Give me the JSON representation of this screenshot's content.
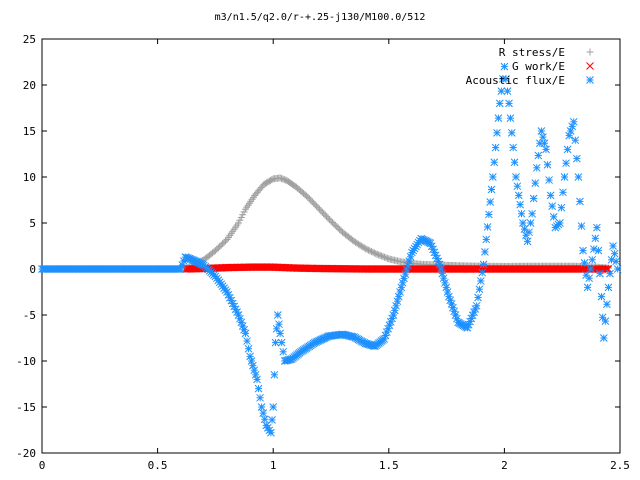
{
  "chart_data": {
    "type": "scatter",
    "title": "m3/n1.5/q2.0/r-+.25-j130/M100.0/512",
    "xlabel": "",
    "ylabel": "",
    "xlim": [
      0,
      2.5
    ],
    "ylim": [
      -20,
      25
    ],
    "x_ticks": [
      "0",
      "0.5",
      "1",
      "1.5",
      "2",
      "2.5"
    ],
    "y_ticks": [
      "-20",
      "-15",
      "-10",
      "-5",
      "0",
      "5",
      "10",
      "15",
      "20",
      "25"
    ],
    "x_tick_values": [
      0,
      0.5,
      1,
      1.5,
      2,
      2.5
    ],
    "y_tick_values": [
      -20,
      -15,
      -10,
      -5,
      0,
      5,
      10,
      15,
      20,
      25
    ],
    "grid": false,
    "legend_position": "top-right",
    "series": [
      {
        "name": "R stress/E",
        "marker": "plus",
        "color": "#a0a0a0",
        "points": [
          [
            0.62,
            0.0
          ],
          [
            0.7,
            1.0
          ],
          [
            0.75,
            2.0
          ],
          [
            0.8,
            3.2
          ],
          [
            0.85,
            5.0
          ],
          [
            0.88,
            6.5
          ],
          [
            0.92,
            8.0
          ],
          [
            0.96,
            9.2
          ],
          [
            1.0,
            9.8
          ],
          [
            1.03,
            9.9
          ],
          [
            1.06,
            9.6
          ],
          [
            1.1,
            8.9
          ],
          [
            1.15,
            7.8
          ],
          [
            1.2,
            6.5
          ],
          [
            1.25,
            5.2
          ],
          [
            1.3,
            4.0
          ],
          [
            1.35,
            3.0
          ],
          [
            1.4,
            2.2
          ],
          [
            1.45,
            1.6
          ],
          [
            1.5,
            1.1
          ],
          [
            1.55,
            0.8
          ],
          [
            1.6,
            0.6
          ],
          [
            1.65,
            0.5
          ],
          [
            1.7,
            0.45
          ],
          [
            1.8,
            0.35
          ],
          [
            1.9,
            0.3
          ],
          [
            2.0,
            0.28
          ],
          [
            2.1,
            0.3
          ],
          [
            2.2,
            0.3
          ],
          [
            2.3,
            0.3
          ],
          [
            2.4,
            0.2
          ],
          [
            2.45,
            0.1
          ]
        ]
      },
      {
        "name": "G work/E",
        "marker": "cross",
        "color": "#ff0000",
        "points": [
          [
            0.62,
            0.0
          ],
          [
            0.7,
            0.05
          ],
          [
            0.8,
            0.15
          ],
          [
            0.9,
            0.2
          ],
          [
            1.0,
            0.2
          ],
          [
            1.1,
            0.1
          ],
          [
            1.2,
            0.05
          ],
          [
            1.4,
            0.0
          ],
          [
            1.6,
            0.0
          ],
          [
            1.8,
            0.0
          ],
          [
            2.0,
            0.0
          ],
          [
            2.2,
            0.0
          ],
          [
            2.4,
            0.0
          ],
          [
            2.45,
            0.0
          ]
        ]
      },
      {
        "name": "Acoustic flux/E",
        "marker": "star",
        "color": "#1e90ff",
        "points": [
          [
            0.0,
            0.0
          ],
          [
            0.1,
            0.0
          ],
          [
            0.2,
            0.0
          ],
          [
            0.3,
            0.0
          ],
          [
            0.4,
            0.0
          ],
          [
            0.5,
            0.0
          ],
          [
            0.6,
            0.0
          ],
          [
            0.62,
            1.3
          ],
          [
            0.66,
            0.9
          ],
          [
            0.7,
            0.4
          ],
          [
            0.75,
            -0.8
          ],
          [
            0.8,
            -2.5
          ],
          [
            0.85,
            -5.0
          ],
          [
            0.88,
            -7.0
          ],
          [
            0.9,
            -9.5
          ],
          [
            0.93,
            -12.0
          ],
          [
            0.95,
            -15.0
          ],
          [
            0.97,
            -17.0
          ],
          [
            0.99,
            -17.8
          ],
          [
            1.0,
            -15.0
          ],
          [
            1.01,
            -8.0
          ],
          [
            1.02,
            -5.0
          ],
          [
            1.03,
            -7.0
          ],
          [
            1.05,
            -10.0
          ],
          [
            1.08,
            -9.8
          ],
          [
            1.12,
            -9.0
          ],
          [
            1.18,
            -8.0
          ],
          [
            1.24,
            -7.3
          ],
          [
            1.3,
            -7.1
          ],
          [
            1.35,
            -7.4
          ],
          [
            1.4,
            -8.1
          ],
          [
            1.44,
            -8.4
          ],
          [
            1.48,
            -7.6
          ],
          [
            1.52,
            -5.0
          ],
          [
            1.56,
            -1.5
          ],
          [
            1.6,
            1.8
          ],
          [
            1.64,
            3.3
          ],
          [
            1.68,
            2.8
          ],
          [
            1.72,
            0.5
          ],
          [
            1.76,
            -3.0
          ],
          [
            1.8,
            -5.8
          ],
          [
            1.84,
            -6.4
          ],
          [
            1.88,
            -4.0
          ],
          [
            1.91,
            0.5
          ],
          [
            1.95,
            10.0
          ],
          [
            1.98,
            18.0
          ],
          [
            2.0,
            22.0
          ],
          [
            2.02,
            18.0
          ],
          [
            2.05,
            10.0
          ],
          [
            2.08,
            5.0
          ],
          [
            2.1,
            3.0
          ],
          [
            2.12,
            6.0
          ],
          [
            2.14,
            11.0
          ],
          [
            2.16,
            15.0
          ],
          [
            2.18,
            13.0
          ],
          [
            2.2,
            8.0
          ],
          [
            2.22,
            4.5
          ],
          [
            2.24,
            5.0
          ],
          [
            2.26,
            10.0
          ],
          [
            2.28,
            14.5
          ],
          [
            2.3,
            16.0
          ],
          [
            2.32,
            10.0
          ],
          [
            2.34,
            2.0
          ],
          [
            2.36,
            -2.0
          ],
          [
            2.38,
            1.0
          ],
          [
            2.4,
            4.5
          ],
          [
            2.42,
            -3.0
          ],
          [
            2.43,
            -7.5
          ],
          [
            2.45,
            -2.0
          ],
          [
            2.47,
            2.5
          ],
          [
            2.49,
            0.0
          ]
        ]
      }
    ]
  }
}
